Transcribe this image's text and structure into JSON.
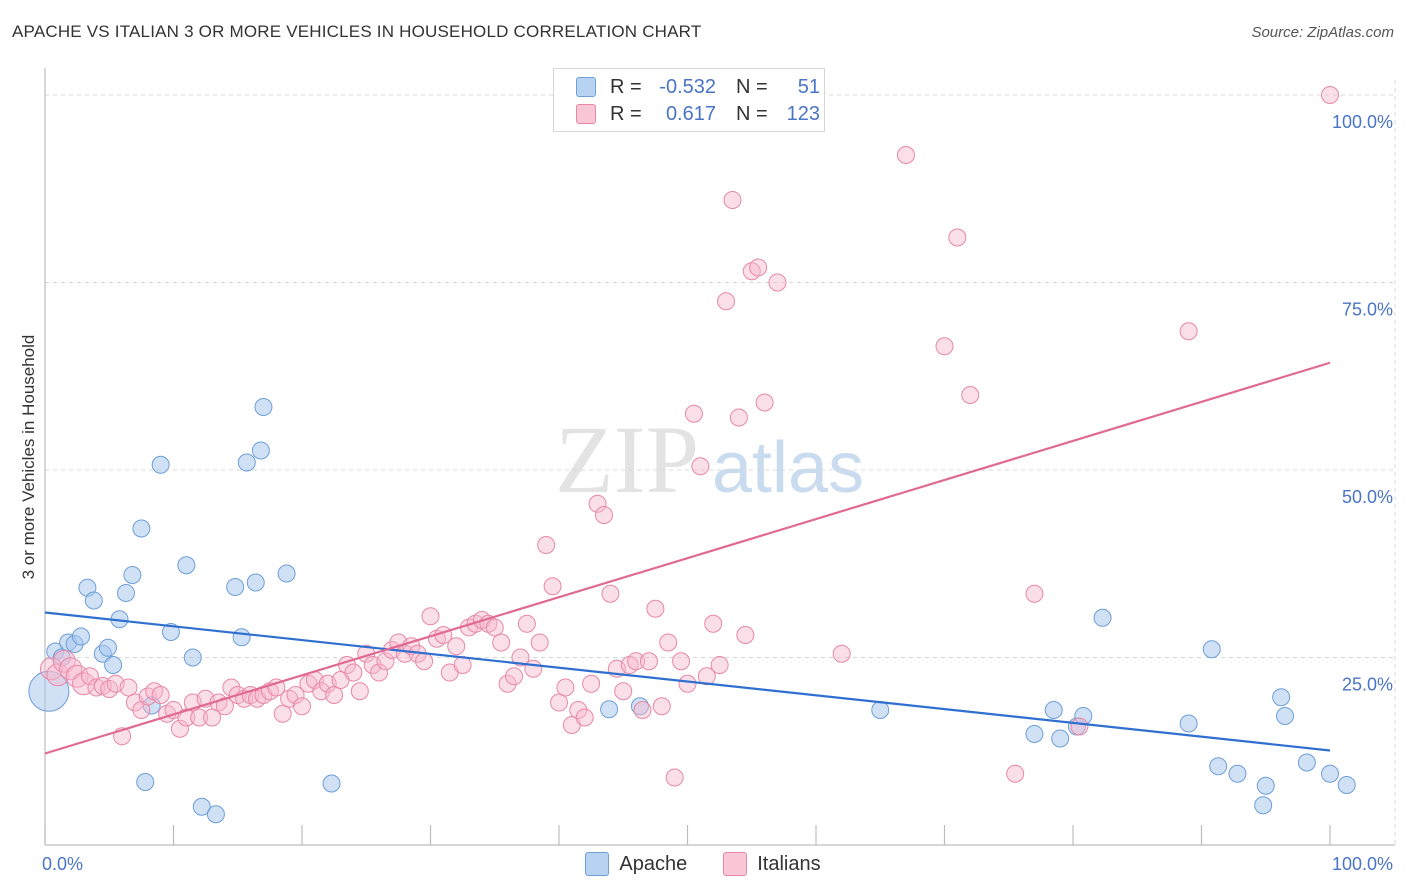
{
  "title": "APACHE VS ITALIAN 3 OR MORE VEHICLES IN HOUSEHOLD CORRELATION CHART",
  "source": "Source: ZipAtlas.com",
  "watermark": {
    "zip": "ZIP",
    "atlas": "atlas"
  },
  "legend": {
    "rows": [
      {
        "r_label": "R =",
        "r_value": "-0.532",
        "n_label": "N =",
        "n_value": "51"
      },
      {
        "r_label": "R =",
        "r_value": "0.617",
        "n_label": "N =",
        "n_value": "123"
      }
    ]
  },
  "colors": {
    "apache_fill": "#a9c8ee",
    "apache_stroke": "#6e9fd8",
    "apache_line": "#2e6fd0",
    "italian_fill": "#f6b8cc",
    "italian_stroke": "#e888a8",
    "italian_line": "#e06a94",
    "grid": "#d8d8d8",
    "tick_label": "#4a74c5"
  },
  "chart_data": {
    "type": "scatter",
    "title": "APACHE VS ITALIAN 3 OR MORE VEHICLES IN HOUSEHOLD CORRELATION CHART",
    "xlabel": "",
    "ylabel": "3 or more Vehicles in Household",
    "xlim": [
      0,
      100
    ],
    "ylim": [
      0,
      102
    ],
    "x_tick_labels": [
      "0.0%",
      "100.0%"
    ],
    "y_ticks": [
      {
        "value": 25,
        "label": "25.0%"
      },
      {
        "value": 50,
        "label": "50.0%"
      },
      {
        "value": 75,
        "label": "75.0%"
      },
      {
        "value": 100,
        "label": "100.0%"
      }
    ],
    "grid": true,
    "legend_position": "top-center",
    "series": [
      {
        "name": "Apache",
        "r": -0.532,
        "n": 51,
        "trend": [
          [
            0,
            31.0
          ],
          [
            100,
            12.6
          ]
        ],
        "points": [
          [
            0.3,
            20.5
          ],
          [
            0.8,
            25.8
          ],
          [
            1.3,
            25.0
          ],
          [
            1.8,
            27.0
          ],
          [
            2.3,
            26.8
          ],
          [
            2.8,
            27.8
          ],
          [
            3.3,
            34.3
          ],
          [
            3.8,
            32.6
          ],
          [
            4.5,
            25.5
          ],
          [
            4.9,
            26.3
          ],
          [
            5.3,
            24.0
          ],
          [
            5.8,
            30.1
          ],
          [
            6.3,
            33.6
          ],
          [
            6.8,
            36.0
          ],
          [
            7.5,
            42.2
          ],
          [
            7.8,
            8.4
          ],
          [
            8.3,
            18.6
          ],
          [
            9.0,
            50.7
          ],
          [
            9.8,
            28.4
          ],
          [
            11.0,
            37.3
          ],
          [
            11.5,
            25.0
          ],
          [
            12.2,
            5.1
          ],
          [
            13.3,
            4.1
          ],
          [
            14.8,
            34.4
          ],
          [
            15.3,
            27.7
          ],
          [
            15.7,
            51.0
          ],
          [
            16.4,
            35.0
          ],
          [
            16.8,
            52.6
          ],
          [
            17.0,
            58.4
          ],
          [
            18.8,
            36.2
          ],
          [
            22.3,
            8.2
          ],
          [
            43.9,
            18.1
          ],
          [
            46.3,
            18.5
          ],
          [
            65.0,
            18.0
          ],
          [
            77.0,
            14.8
          ],
          [
            78.5,
            18.0
          ],
          [
            79.0,
            14.2
          ],
          [
            80.3,
            15.8
          ],
          [
            80.8,
            17.2
          ],
          [
            82.3,
            30.3
          ],
          [
            89.0,
            16.2
          ],
          [
            90.8,
            26.1
          ],
          [
            91.3,
            10.5
          ],
          [
            92.8,
            9.5
          ],
          [
            94.8,
            5.3
          ],
          [
            95.0,
            7.9
          ],
          [
            96.2,
            19.7
          ],
          [
            96.5,
            17.2
          ],
          [
            98.2,
            11.0
          ],
          [
            100.0,
            9.5
          ],
          [
            101.3,
            8.0
          ]
        ]
      },
      {
        "name": "Italians",
        "r": 0.617,
        "n": 123,
        "trend": [
          [
            0,
            12.2
          ],
          [
            100,
            64.3
          ]
        ],
        "points": [
          [
            0.5,
            23.5
          ],
          [
            1.0,
            22.7
          ],
          [
            1.5,
            24.5
          ],
          [
            2.0,
            23.5
          ],
          [
            2.5,
            22.5
          ],
          [
            3.0,
            21.5
          ],
          [
            3.5,
            22.5
          ],
          [
            4.0,
            21.0
          ],
          [
            4.5,
            21.2
          ],
          [
            5.0,
            20.8
          ],
          [
            5.5,
            21.5
          ],
          [
            6.0,
            14.5
          ],
          [
            6.5,
            21.0
          ],
          [
            7.0,
            19.0
          ],
          [
            7.5,
            18.0
          ],
          [
            8.0,
            19.8
          ],
          [
            8.5,
            20.5
          ],
          [
            9.0,
            20.0
          ],
          [
            9.5,
            17.5
          ],
          [
            10.0,
            18.0
          ],
          [
            10.5,
            15.5
          ],
          [
            11.0,
            17.0
          ],
          [
            11.5,
            19.0
          ],
          [
            12.0,
            17.0
          ],
          [
            12.5,
            19.5
          ],
          [
            13.0,
            17.0
          ],
          [
            13.5,
            19.0
          ],
          [
            14.0,
            18.5
          ],
          [
            14.5,
            21.0
          ],
          [
            15.0,
            20.0
          ],
          [
            15.5,
            19.5
          ],
          [
            16.0,
            20.0
          ],
          [
            16.5,
            19.5
          ],
          [
            17.0,
            20.0
          ],
          [
            17.5,
            20.5
          ],
          [
            18.0,
            21.0
          ],
          [
            18.5,
            17.5
          ],
          [
            19.0,
            19.5
          ],
          [
            19.5,
            20.0
          ],
          [
            20.0,
            18.5
          ],
          [
            20.5,
            21.5
          ],
          [
            21.0,
            22.0
          ],
          [
            21.5,
            20.5
          ],
          [
            22.0,
            21.5
          ],
          [
            22.5,
            20.0
          ],
          [
            23.0,
            22.0
          ],
          [
            23.5,
            24.0
          ],
          [
            24.0,
            23.0
          ],
          [
            24.5,
            20.5
          ],
          [
            25.0,
            25.5
          ],
          [
            25.5,
            24.0
          ],
          [
            26.0,
            23.0
          ],
          [
            26.5,
            24.5
          ],
          [
            27.0,
            26.0
          ],
          [
            27.5,
            27.0
          ],
          [
            28.0,
            25.5
          ],
          [
            28.5,
            26.5
          ],
          [
            29.0,
            25.5
          ],
          [
            29.5,
            24.5
          ],
          [
            30.0,
            30.5
          ],
          [
            30.5,
            27.5
          ],
          [
            31.0,
            28.0
          ],
          [
            31.5,
            23.0
          ],
          [
            32.0,
            26.5
          ],
          [
            32.5,
            24.0
          ],
          [
            33.0,
            29.0
          ],
          [
            33.5,
            29.5
          ],
          [
            34.0,
            30.0
          ],
          [
            34.5,
            29.5
          ],
          [
            35.0,
            29.0
          ],
          [
            35.5,
            27.0
          ],
          [
            36.0,
            21.5
          ],
          [
            36.5,
            22.5
          ],
          [
            37.0,
            25.0
          ],
          [
            37.5,
            29.5
          ],
          [
            38.0,
            23.5
          ],
          [
            38.5,
            27.0
          ],
          [
            39.0,
            40.0
          ],
          [
            39.5,
            34.5
          ],
          [
            40.0,
            19.0
          ],
          [
            40.5,
            21.0
          ],
          [
            41.0,
            16.0
          ],
          [
            41.5,
            18.0
          ],
          [
            42.0,
            17.0
          ],
          [
            42.5,
            21.5
          ],
          [
            43.0,
            45.5
          ],
          [
            43.5,
            44.0
          ],
          [
            44.0,
            33.5
          ],
          [
            44.5,
            23.5
          ],
          [
            45.0,
            20.5
          ],
          [
            45.5,
            24.0
          ],
          [
            46.0,
            24.5
          ],
          [
            46.5,
            18.0
          ],
          [
            47.0,
            24.5
          ],
          [
            47.5,
            31.5
          ],
          [
            48.0,
            18.5
          ],
          [
            48.5,
            27.0
          ],
          [
            49.0,
            9.0
          ],
          [
            49.5,
            24.5
          ],
          [
            50.0,
            21.5
          ],
          [
            50.5,
            57.5
          ],
          [
            51.0,
            50.5
          ],
          [
            51.5,
            22.5
          ],
          [
            52.0,
            29.5
          ],
          [
            52.5,
            24.0
          ],
          [
            53.0,
            72.5
          ],
          [
            53.5,
            86.0
          ],
          [
            54.0,
            57.0
          ],
          [
            54.5,
            28.0
          ],
          [
            55.0,
            76.5
          ],
          [
            55.5,
            77.0
          ],
          [
            56.0,
            59.0
          ],
          [
            57.0,
            75.0
          ],
          [
            62.0,
            25.5
          ],
          [
            67.0,
            92.0
          ],
          [
            70.0,
            66.5
          ],
          [
            71.0,
            81.0
          ],
          [
            72.0,
            60.0
          ],
          [
            75.5,
            9.5
          ],
          [
            77.0,
            33.5
          ],
          [
            80.5,
            15.8
          ],
          [
            89.0,
            68.5
          ],
          [
            100.0,
            100.0
          ]
        ]
      }
    ]
  },
  "bottom_legend": {
    "apache": "Apache",
    "italians": "Italians"
  }
}
